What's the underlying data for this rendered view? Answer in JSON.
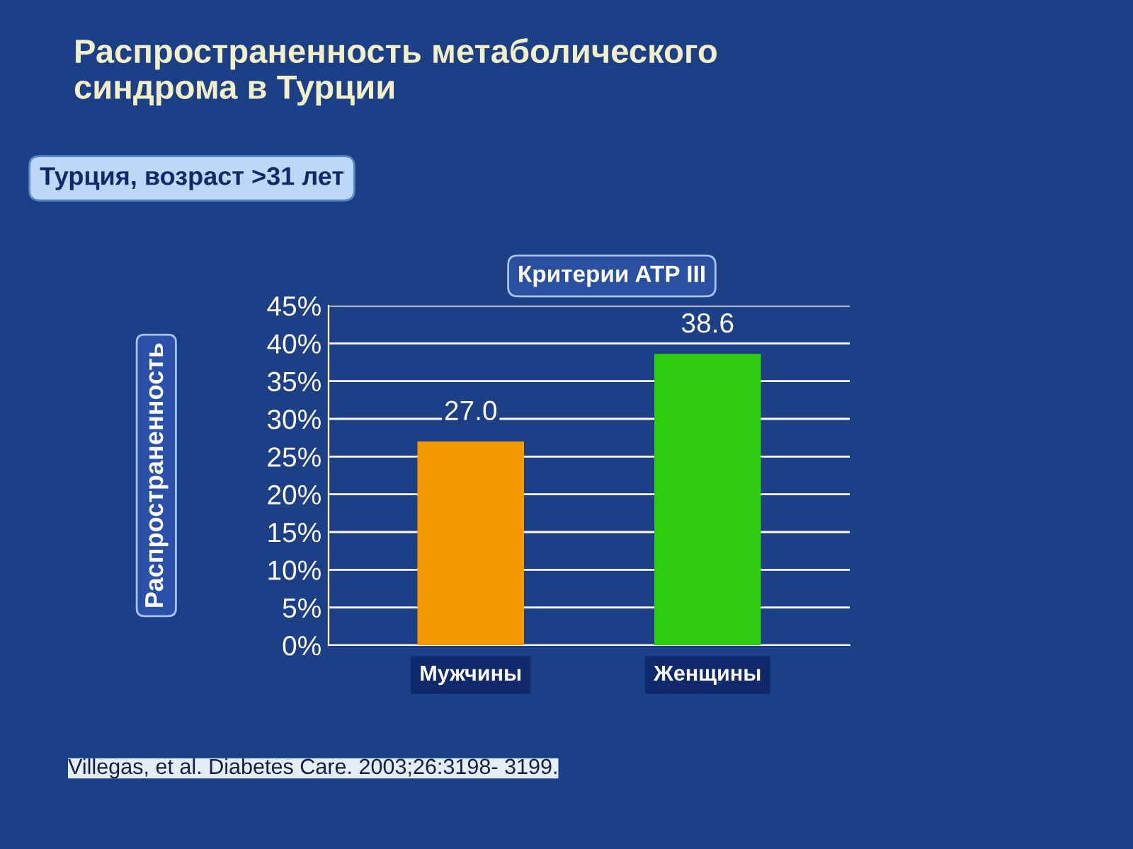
{
  "chart_data": {
    "type": "bar",
    "title": "Распространенность метаболического\nсиндрома в Турции",
    "ylabel": "Распространенность",
    "categories": [
      "Мужчины",
      "Женщины"
    ],
    "colors": [
      "#f59a00",
      "#2ecc10"
    ],
    "values": [
      27.0,
      38.6
    ],
    "value_labels": [
      "27.0",
      "38.6"
    ],
    "ylim": [
      0,
      45
    ],
    "yticks": [
      {
        "value": 0,
        "label": "0%"
      },
      {
        "value": 5,
        "label": "5%"
      },
      {
        "value": 10,
        "label": "10%"
      },
      {
        "value": 15,
        "label": "15%"
      },
      {
        "value": 20,
        "label": "20%"
      },
      {
        "value": 25,
        "label": "25%"
      },
      {
        "value": 30,
        "label": "30%"
      },
      {
        "value": 35,
        "label": "35%"
      },
      {
        "value": 40,
        "label": "40%"
      },
      {
        "value": 45,
        "label": "45%"
      }
    ],
    "grid": "y",
    "annotations": [
      "Турция, возраст >31 лет",
      "Критерии ATP III",
      "Villegas, et al. Diabetes Care. 2003;26:3198- 3199."
    ]
  }
}
